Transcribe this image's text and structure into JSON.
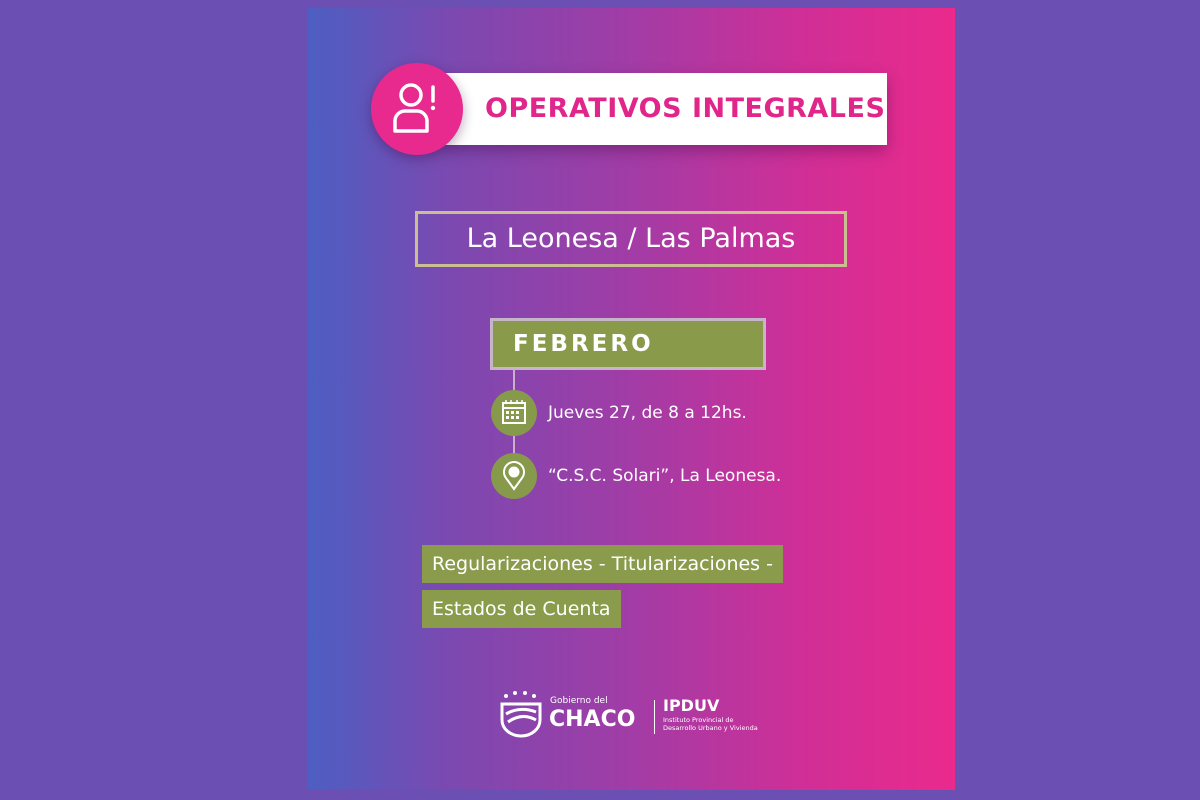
{
  "colors": {
    "background": "#6c4fb3",
    "gradient_start": "#4d5ec2",
    "gradient_end": "#ea2a8c",
    "accent_pink": "#e8298d",
    "accent_green": "#899a4b"
  },
  "header": {
    "title": "OPERATIVOS INTEGRALES",
    "icon": "user-alert-icon"
  },
  "location_title": "La Leonesa / Las Palmas",
  "month": "FEBRERO",
  "schedule": [
    {
      "icon": "calendar-icon",
      "text": "Jueves 27, de 8 a 12hs."
    },
    {
      "icon": "map-pin-icon",
      "text": "“C.S.C. Solari”, La Leonesa."
    }
  ],
  "services": [
    "Regularizaciones - Titularizaciones -",
    "Estados de Cuenta"
  ],
  "footer": {
    "gov_small": "Gobierno del",
    "gov_big": "CHACO",
    "inst_name": "IPDUV",
    "inst_line1": "Instituto Provincial de",
    "inst_line2": "Desarrollo Urbano y Vivienda"
  }
}
